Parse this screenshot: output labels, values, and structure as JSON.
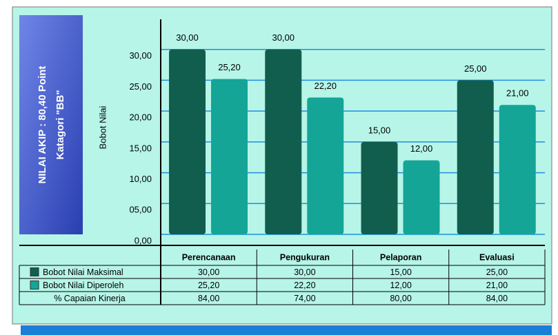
{
  "chart_data": {
    "type": "bar",
    "side_title": [
      "NILAI AKIP :  80,40  Point",
      "Katagori \"BB\""
    ],
    "y_label": "Bobot Nilai",
    "categories": [
      "Perencanaan",
      "Pengukuran",
      "Pelaporan",
      "Evaluasi"
    ],
    "series": [
      {
        "name": "Bobot Nilai Maksimal",
        "color": "#115e4e",
        "values": [
          30,
          30,
          15,
          25
        ],
        "value_labels": [
          "30,00",
          "30,00",
          "15,00",
          "25,00"
        ]
      },
      {
        "name": "Bobot Nilai Diperoleh",
        "color": "#14a597",
        "values": [
          25.2,
          22.2,
          12,
          21
        ],
        "value_labels": [
          "25,20",
          "22,20",
          "12,00",
          "21,00"
        ]
      }
    ],
    "extra_rows": [
      {
        "name": "% Capaian Kinerja",
        "values": [
          84,
          74,
          80,
          84
        ],
        "value_labels": [
          "84,00",
          "74,00",
          "80,00",
          "84,00"
        ]
      }
    ],
    "ylim": [
      0,
      35
    ],
    "yticks": [
      {
        "value": 0,
        "label": "0,00"
      },
      {
        "value": 5,
        "label": "05,00"
      },
      {
        "value": 10,
        "label": "10,00"
      },
      {
        "value": 15,
        "label": "15,00"
      },
      {
        "value": 20,
        "label": "20,00"
      },
      {
        "value": 25,
        "label": "25,00"
      },
      {
        "value": 30,
        "label": "30,00"
      }
    ],
    "grid": true
  }
}
